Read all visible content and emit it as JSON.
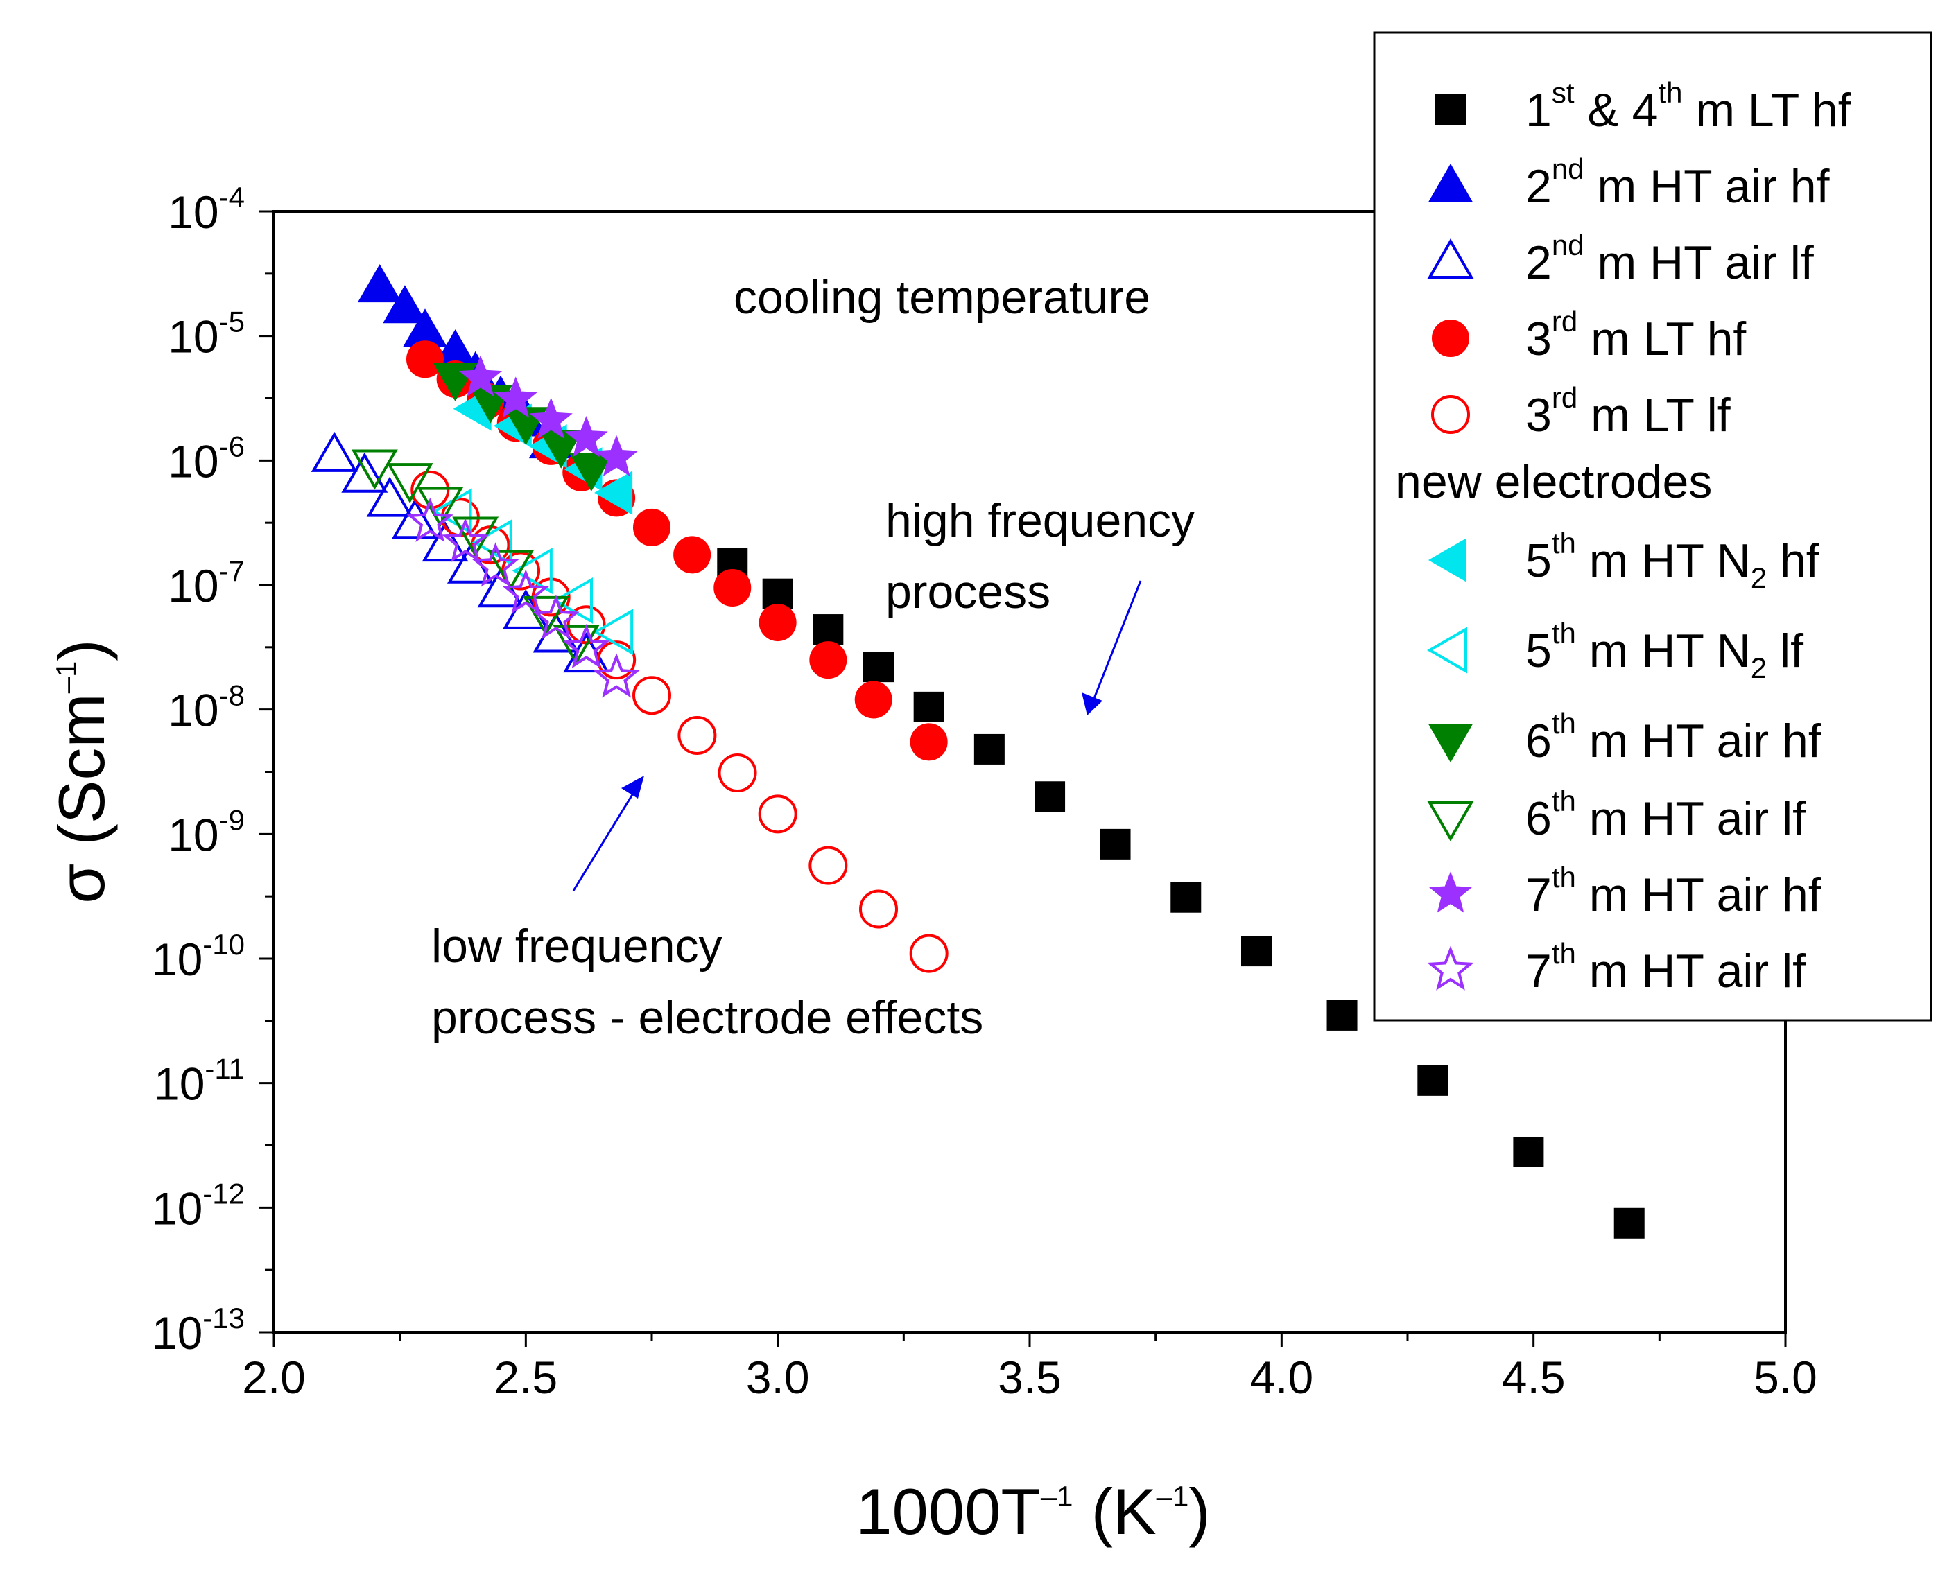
{
  "chart_data": {
    "type": "scatter",
    "title": "",
    "xlabel": {
      "base": "1000T",
      "sup1": "–1",
      "mid": " (K",
      "sup2": "–1",
      "end": ")"
    },
    "ylabel": {
      "sigma": "σ",
      "base": " (Scm",
      "sup": "–1",
      "end": ")"
    },
    "xlim": [
      2.0,
      5.0
    ],
    "ylim_log10": [
      -13,
      -4
    ],
    "x_ticks": [
      "2.0",
      "2.5",
      "3.0",
      "3.5",
      "4.0",
      "4.5",
      "5.0"
    ],
    "y_ticks": [
      {
        "exp": -4,
        "base": "10",
        "sup": "-4"
      },
      {
        "exp": -5,
        "base": "10",
        "sup": "-5"
      },
      {
        "exp": -6,
        "base": "10",
        "sup": "-6"
      },
      {
        "exp": -7,
        "base": "10",
        "sup": "-7"
      },
      {
        "exp": -8,
        "base": "10",
        "sup": "-8"
      },
      {
        "exp": -9,
        "base": "10",
        "sup": "-9"
      },
      {
        "exp": -10,
        "base": "10",
        "sup": "-10"
      },
      {
        "exp": -11,
        "base": "10",
        "sup": "-11"
      },
      {
        "exp": -12,
        "base": "10",
        "sup": "-12"
      },
      {
        "exp": -13,
        "base": "10",
        "sup": "-13"
      }
    ],
    "annotations": {
      "cooling": "cooling temperature",
      "hf_line1": "high frequency",
      "hf_line2": "process",
      "lf_line1": "low frequency",
      "lf_line2": "process - electrode effects"
    },
    "legend_header": "new electrodes",
    "series": [
      {
        "id": "s1",
        "marker": "square",
        "filled": true,
        "color": "#000000",
        "label": {
          "a": "1",
          "a_sup": "st",
          "b": " & 4",
          "b_sup": "th",
          "c": " m LT hf"
        },
        "points": [
          [
            2.91,
            1.5e-07
          ],
          [
            3.0,
            8.5e-08
          ],
          [
            3.1,
            4.4e-08
          ],
          [
            3.2,
            2.2e-08
          ],
          [
            3.3,
            1.05e-08
          ],
          [
            3.42,
            4.8e-09
          ],
          [
            3.54,
            2e-09
          ],
          [
            3.67,
            8.3e-10
          ],
          [
            3.81,
            3.1e-10
          ],
          [
            3.95,
            1.15e-10
          ],
          [
            4.12,
            3.5e-11
          ],
          [
            4.3,
            1.05e-11
          ],
          [
            4.49,
            2.8e-12
          ],
          [
            4.69,
            7.5e-13
          ]
        ]
      },
      {
        "id": "s2",
        "marker": "triangle-up",
        "filled": true,
        "color": "#0000ee",
        "label": {
          "a": "2",
          "a_sup": "nd",
          "c": " m HT air hf"
        },
        "points": [
          [
            2.21,
            2.5e-05
          ],
          [
            2.26,
            1.7e-05
          ],
          [
            2.3,
            1.1e-05
          ],
          [
            2.36,
            7.5e-06
          ],
          [
            2.4,
            5e-06
          ],
          [
            2.45,
            3.2e-06
          ],
          [
            2.5,
            2.1e-06
          ],
          [
            2.55,
            1.4e-06
          ]
        ]
      },
      {
        "id": "s3",
        "marker": "triangle-up",
        "filled": false,
        "color": "#0000ee",
        "label": {
          "a": "2",
          "a_sup": "nd",
          "c": " m HT air lf"
        },
        "points": [
          [
            2.12,
            1.1e-06
          ],
          [
            2.18,
            7.5e-07
          ],
          [
            2.23,
            4.8e-07
          ],
          [
            2.28,
            3.2e-07
          ],
          [
            2.34,
            2.1e-07
          ],
          [
            2.39,
            1.4e-07
          ],
          [
            2.45,
            9e-08
          ],
          [
            2.5,
            6e-08
          ],
          [
            2.56,
            3.9e-08
          ],
          [
            2.62,
            2.7e-08
          ]
        ]
      },
      {
        "id": "s4",
        "marker": "circle",
        "filled": true,
        "color": "#ff0000",
        "label": {
          "a": "3",
          "a_sup": "rd",
          "c": " m LT hf"
        },
        "points": [
          [
            2.3,
            6.5e-06
          ],
          [
            2.36,
            4.5e-06
          ],
          [
            2.42,
            3e-06
          ],
          [
            2.48,
            2e-06
          ],
          [
            2.55,
            1.3e-06
          ],
          [
            2.61,
            8e-07
          ],
          [
            2.68,
            5e-07
          ],
          [
            2.75,
            2.9e-07
          ],
          [
            2.83,
            1.75e-07
          ],
          [
            2.91,
            9.5e-08
          ],
          [
            3.0,
            5e-08
          ],
          [
            3.1,
            2.5e-08
          ],
          [
            3.19,
            1.2e-08
          ],
          [
            3.3,
            5.5e-09
          ]
        ]
      },
      {
        "id": "s5",
        "marker": "circle",
        "filled": false,
        "color": "#ff0000",
        "label": {
          "a": "3",
          "a_sup": "rd",
          "c": " m LT lf"
        },
        "points": [
          [
            2.31,
            5.8e-07
          ],
          [
            2.37,
            3.5e-07
          ],
          [
            2.43,
            2.1e-07
          ],
          [
            2.49,
            1.3e-07
          ],
          [
            2.55,
            8e-08
          ],
          [
            2.62,
            4.8e-08
          ],
          [
            2.68,
            2.5e-08
          ],
          [
            2.75,
            1.3e-08
          ],
          [
            2.84,
            6.2e-09
          ],
          [
            2.92,
            3.1e-09
          ],
          [
            3.0,
            1.45e-09
          ],
          [
            3.1,
            5.6e-10
          ],
          [
            3.2,
            2.5e-10
          ],
          [
            3.3,
            1.1e-10
          ]
        ]
      },
      {
        "id": "s6",
        "marker": "triangle-left",
        "filled": true,
        "color": "#00e5ee",
        "label": {
          "a": "5",
          "a_sup": "th",
          "c": " m HT N",
          "c_sub": "2",
          "d": " hf"
        },
        "points": [
          [
            2.4,
            2.6e-06
          ],
          [
            2.48,
            1.9e-06
          ],
          [
            2.55,
            1.3e-06
          ],
          [
            2.62,
            8.5e-07
          ],
          [
            2.68,
            5.5e-07
          ]
        ]
      },
      {
        "id": "s7",
        "marker": "triangle-left",
        "filled": false,
        "color": "#00e5ee",
        "label": {
          "a": "5",
          "a_sup": "th",
          "c": " m HT N",
          "c_sub": "2",
          "d": " lf"
        },
        "points": [
          [
            2.36,
            3.9e-07
          ],
          [
            2.44,
            2.2e-07
          ],
          [
            2.52,
            1.3e-07
          ],
          [
            2.6,
            7.5e-08
          ],
          [
            2.68,
            4.2e-08
          ]
        ]
      },
      {
        "id": "s8",
        "marker": "triangle-down",
        "filled": true,
        "color": "#008000",
        "label": {
          "a": "6",
          "a_sup": "th",
          "c": " m HT air hf"
        },
        "points": [
          [
            2.36,
            4.5e-06
          ],
          [
            2.43,
            3e-06
          ],
          [
            2.5,
            2e-06
          ],
          [
            2.57,
            1.3e-06
          ],
          [
            2.63,
            8.5e-07
          ]
        ]
      },
      {
        "id": "s9",
        "marker": "triangle-down",
        "filled": false,
        "color": "#008000",
        "label": {
          "a": "6",
          "a_sup": "th",
          "c": " m HT air lf"
        },
        "points": [
          [
            2.2,
            9e-07
          ],
          [
            2.27,
            7e-07
          ],
          [
            2.33,
            4.5e-07
          ],
          [
            2.4,
            2.6e-07
          ],
          [
            2.47,
            1.4e-07
          ],
          [
            2.54,
            6e-08
          ],
          [
            2.6,
            3.5e-08
          ]
        ]
      },
      {
        "id": "s10",
        "marker": "star",
        "filled": true,
        "color": "#9b30ff",
        "label": {
          "a": "7",
          "a_sup": "th",
          "c": " m HT air hf"
        },
        "points": [
          [
            2.41,
            4.6e-06
          ],
          [
            2.48,
            3.1e-06
          ],
          [
            2.55,
            2.1e-06
          ],
          [
            2.62,
            1.5e-06
          ],
          [
            2.68,
            1.05e-06
          ]
        ]
      },
      {
        "id": "s11",
        "marker": "star",
        "filled": false,
        "color": "#9b30ff",
        "label": {
          "a": "7",
          "a_sup": "th",
          "c": " m HT air lf"
        },
        "points": [
          [
            2.31,
            3.2e-07
          ],
          [
            2.38,
            2.2e-07
          ],
          [
            2.44,
            1.4e-07
          ],
          [
            2.5,
            8.5e-08
          ],
          [
            2.56,
            5.3e-08
          ],
          [
            2.62,
            3.1e-08
          ],
          [
            2.68,
            1.8e-08
          ]
        ]
      }
    ]
  }
}
